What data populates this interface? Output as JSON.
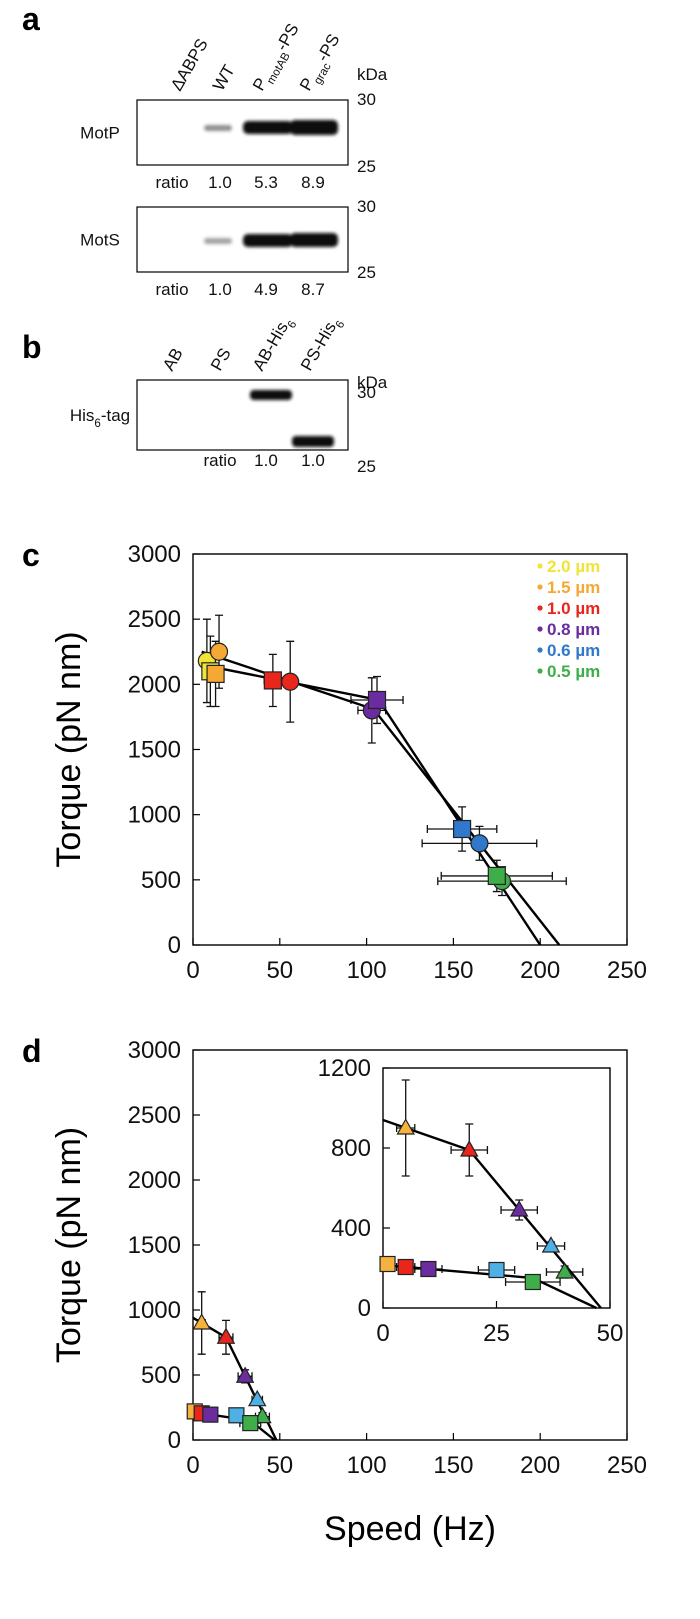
{
  "panels": {
    "a": {
      "label": "a",
      "lanes": [
        "ΔABPS",
        "WT",
        {
          "base": "P",
          "sub": "motAB",
          "tail": "-PS"
        },
        {
          "base": "P",
          "sub": "grac",
          "tail": "-PS"
        }
      ],
      "unit": "kDa",
      "blots": [
        {
          "name": "MotP",
          "markers": [
            30,
            25
          ],
          "ratio_label": "ratio",
          "ratios": [
            "1.0",
            "5.3",
            "8.9"
          ]
        },
        {
          "name": "MotS",
          "markers": [
            30,
            25
          ],
          "ratio_label": "ratio",
          "ratios": [
            "1.0",
            "4.9",
            "8.7"
          ]
        }
      ]
    },
    "b": {
      "label": "b",
      "lanes": [
        "AB",
        "PS",
        {
          "base": "AB-His",
          "sub": "6"
        },
        {
          "base": "PS-His",
          "sub": "6"
        }
      ],
      "unit": "kDa",
      "blots": [
        {
          "name": {
            "base": "His",
            "sub": "6",
            "tail": "-tag"
          },
          "markers": [
            30,
            25
          ],
          "ratio_label": "ratio",
          "ratios": [
            "1.0",
            "1.0"
          ]
        }
      ]
    }
  },
  "chart_data": [
    {
      "type": "scatter",
      "panel": "c",
      "ylabel": "Torque (pN nm)",
      "xlim": [
        0,
        250
      ],
      "xticks": [
        0,
        50,
        100,
        150,
        200,
        250
      ],
      "ylim": [
        0,
        3000
      ],
      "yticks": [
        0,
        500,
        1000,
        1500,
        2000,
        2500,
        3000
      ],
      "markers": [
        "circle",
        "square"
      ],
      "legend": "upper right",
      "series": [
        {
          "name": "2.0 µm",
          "color": "#f0e436",
          "x": [
            8,
            10
          ],
          "y": [
            2180,
            2100
          ],
          "xerr": [
            2,
            2
          ],
          "yerr": [
            320,
            270
          ]
        },
        {
          "name": "1.5 µm",
          "color": "#f5a833",
          "x": [
            15,
            13
          ],
          "y": [
            2250,
            2080
          ],
          "xerr": [
            3,
            3
          ],
          "yerr": [
            280,
            250
          ]
        },
        {
          "name": "1.0 µm",
          "color": "#e8261c",
          "x": [
            56,
            46
          ],
          "y": [
            2020,
            2030
          ],
          "xerr": [
            4,
            5
          ],
          "yerr": [
            310,
            200
          ]
        },
        {
          "name": "0.8 µm",
          "color": "#6a2c9e",
          "x": [
            103,
            106
          ],
          "y": [
            1800,
            1880
          ],
          "xerr": [
            8,
            15
          ],
          "yerr": [
            250,
            180
          ]
        },
        {
          "name": "0.6 µm",
          "color": "#2f78cc",
          "x": [
            165,
            155
          ],
          "y": [
            780,
            890
          ],
          "xerr": [
            33,
            20
          ],
          "yerr": [
            130,
            170
          ]
        },
        {
          "name": "0.5 µm",
          "color": "#3fae4a",
          "x": [
            178,
            175
          ],
          "y": [
            490,
            530
          ],
          "xerr": [
            37,
            32
          ],
          "yerr": [
            110,
            120
          ]
        }
      ],
      "lines": [
        {
          "color": "#000000",
          "x": [
            5,
            104,
            211
          ],
          "y": [
            2250,
            1810,
            0
          ]
        },
        {
          "color": "#000000",
          "x": [
            5,
            107,
            200
          ],
          "y": [
            2150,
            1880,
            0
          ]
        }
      ]
    },
    {
      "type": "scatter",
      "panel": "d",
      "ylabel": "Torque (pN nm)",
      "xlabel": "Speed (Hz)",
      "xlim": [
        0,
        250
      ],
      "xticks": [
        0,
        50,
        100,
        150,
        200,
        250
      ],
      "ylim": [
        0,
        3000
      ],
      "yticks": [
        0,
        500,
        1000,
        1500,
        2000,
        2500,
        3000
      ],
      "markers": [
        "triangle",
        "square"
      ],
      "series": [
        {
          "color": "#f5b23c",
          "x": [
            5,
            1
          ],
          "y": [
            900,
            220
          ],
          "xerr": [
            2,
            1
          ],
          "yerr": [
            240,
            30
          ]
        },
        {
          "color": "#e8261c",
          "x": [
            19,
            5
          ],
          "y": [
            790,
            205
          ],
          "xerr": [
            4,
            2
          ],
          "yerr": [
            130,
            30
          ]
        },
        {
          "color": "#6a2c9e",
          "x": [
            30,
            10
          ],
          "y": [
            490,
            195
          ],
          "xerr": [
            4,
            3
          ],
          "yerr": [
            50,
            20
          ]
        },
        {
          "color": "#4fb0e6",
          "x": [
            37,
            25
          ],
          "y": [
            310,
            190
          ],
          "xerr": [
            3,
            4
          ],
          "yerr": [
            20,
            20
          ]
        },
        {
          "color": "#3fae4a",
          "x": [
            40,
            33
          ],
          "y": [
            180,
            130
          ],
          "xerr": [
            4,
            6
          ],
          "yerr": [
            30,
            20
          ]
        }
      ],
      "lines": [
        {
          "color": "#000000",
          "x": [
            0,
            19,
            48
          ],
          "y": [
            940,
            790,
            0
          ]
        },
        {
          "color": "#000000",
          "x": [
            0,
            33,
            47
          ],
          "y": [
            215,
            150,
            0
          ]
        }
      ],
      "inset": {
        "xlim": [
          0,
          50
        ],
        "xticks": [
          0,
          25,
          50
        ],
        "ylim": [
          0,
          1200
        ],
        "yticks": [
          0,
          400,
          800,
          1200
        ]
      }
    }
  ]
}
